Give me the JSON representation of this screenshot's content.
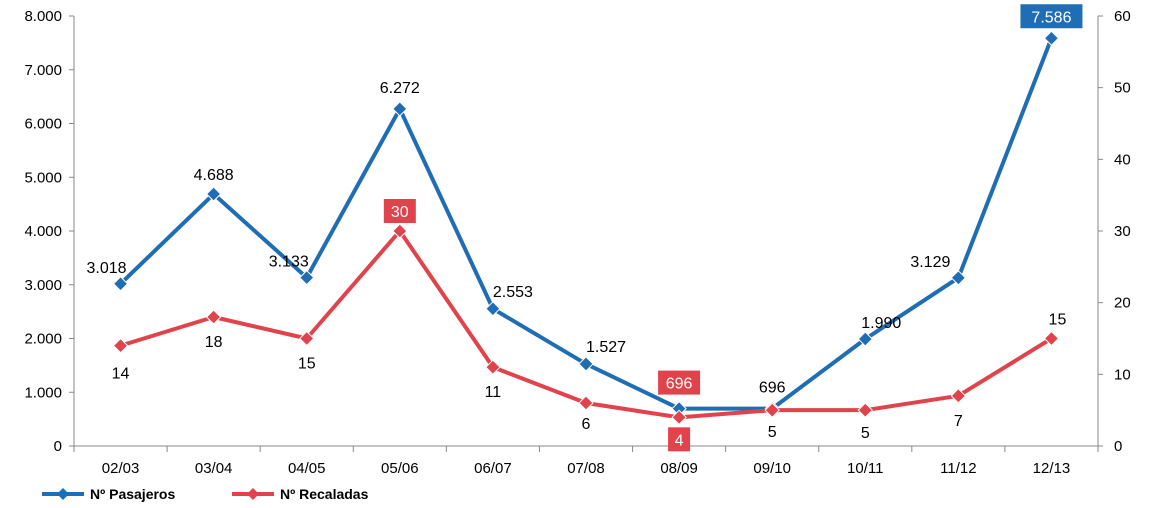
{
  "chart_data": {
    "type": "line",
    "categories": [
      "02/03",
      "03/04",
      "04/05",
      "05/06",
      "06/07",
      "07/08",
      "08/09",
      "09/10",
      "10/11",
      "11/12",
      "12/13"
    ],
    "axes": {
      "left": {
        "min": 0,
        "max": 8000,
        "ticks": [
          0,
          1000,
          2000,
          3000,
          4000,
          5000,
          6000,
          7000,
          8000
        ],
        "tick_labels": [
          "0",
          "1.000",
          "2.000",
          "3.000",
          "4.000",
          "5.000",
          "6.000",
          "7.000",
          "8.000"
        ]
      },
      "right": {
        "min": 0,
        "max": 60,
        "ticks": [
          0,
          10,
          20,
          30,
          40,
          50,
          60
        ],
        "tick_labels": [
          "0",
          "10",
          "20",
          "30",
          "40",
          "50",
          "60"
        ]
      }
    },
    "series": [
      {
        "name": "Nº Pasajeros",
        "axis": "left",
        "color": "#1f6db5",
        "values": [
          3018,
          4688,
          3133,
          6272,
          2553,
          1527,
          696,
          696,
          1990,
          3129,
          7586
        ],
        "labels": [
          "3.018",
          "4.688",
          "3.133",
          "6.272",
          "2.553",
          "1.527",
          "",
          "696",
          "1.990",
          "3.129",
          "7.586"
        ],
        "boxed_labels": [
          10
        ]
      },
      {
        "name": "Nº Recaladas",
        "axis": "right",
        "color": "#e0434b",
        "values": [
          14,
          18,
          15,
          30,
          11,
          6,
          4,
          5,
          5,
          7,
          15
        ],
        "labels": [
          "14",
          "18",
          "15",
          "30",
          "11",
          "6",
          "4",
          "5",
          "5",
          "7",
          "15"
        ],
        "boxed_labels": [
          3,
          6
        ]
      }
    ],
    "extra_annotation": {
      "text": "696",
      "category": "08/09",
      "color": "#e0434b"
    },
    "legend": {
      "position": "bottom-left"
    },
    "grid": false
  }
}
